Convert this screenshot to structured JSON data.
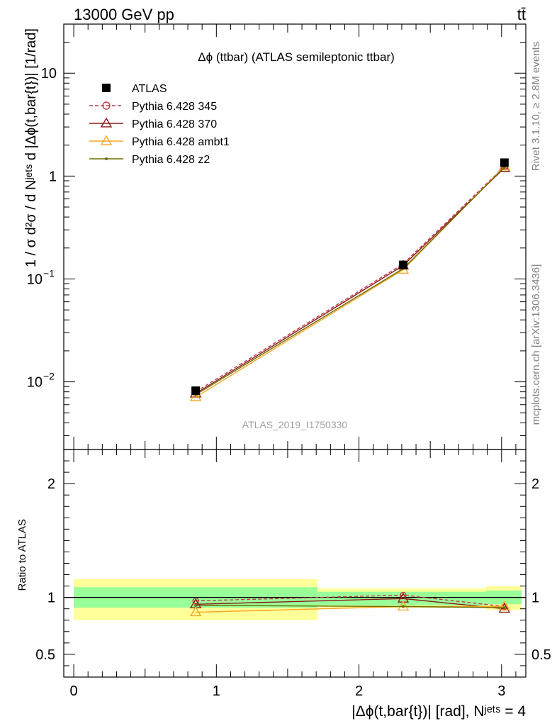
{
  "header": {
    "energy_label": "13000 GeV pp",
    "process_label": "tt̄"
  },
  "side_labels": {
    "rivet": "Rivet 3.1.10, ≥ 2.8M events",
    "mcplots": "mcplots.cern.ch [arXiv:1306.3436]"
  },
  "chart_data": [
    {
      "type": "line",
      "title": "Δϕ (ttbar) (ATLAS semileptonic ttbar)",
      "watermark": "ATLAS_2019_I1750330",
      "ylabel": "1 / σ d²σ / d Nʲᵉᵗˢ d |Δϕ(t,bar{t})| [1/rad]",
      "xlabel": "",
      "y_scale": "log",
      "xlim": [
        -0.07,
        3.17
      ],
      "ylim": [
        0.0022,
        30
      ],
      "y_ticks": [
        {
          "value": 0.01,
          "base": "10",
          "exp": "−2"
        },
        {
          "value": 0.1,
          "base": "10",
          "exp": "−1"
        },
        {
          "value": 1,
          "label": "1"
        },
        {
          "value": 10,
          "label": "10"
        }
      ],
      "legend_position": "top-left",
      "series": [
        {
          "name": "ATLAS",
          "color": "#000000",
          "marker": "filled-square",
          "line": "none",
          "x": [
            0.855,
            2.31,
            3.02
          ],
          "y": [
            0.0082,
            0.137,
            1.35
          ]
        },
        {
          "name": "Pythia 6.428 345",
          "color": "#c0394b",
          "marker": "open-circle",
          "line": "dashed",
          "x": [
            0.855,
            2.31,
            3.02
          ],
          "y": [
            0.008,
            0.14,
            1.24
          ]
        },
        {
          "name": "Pythia 6.428 370",
          "color": "#8b1a1a",
          "marker": "open-triangle",
          "line": "solid",
          "x": [
            0.855,
            2.31,
            3.02
          ],
          "y": [
            0.0077,
            0.135,
            1.2
          ]
        },
        {
          "name": "Pythia 6.428 ambt1",
          "color": "#f5a623",
          "marker": "open-triangle",
          "line": "solid",
          "x": [
            0.855,
            2.31,
            3.02
          ],
          "y": [
            0.0071,
            0.123,
            1.24
          ]
        },
        {
          "name": "Pythia 6.428 z2",
          "color": "#6b6b00",
          "marker": "dot",
          "line": "solid",
          "x": [
            0.855,
            2.31,
            3.02
          ],
          "y": [
            0.0075,
            0.126,
            1.22
          ]
        }
      ]
    },
    {
      "type": "line",
      "ylabel": "Ratio to ATLAS",
      "xlabel": "|Δϕ(t,bar{t})| [rad], Nʲᵉᵗˢ = 4",
      "y_scale": "linear",
      "xlim": [
        -0.07,
        3.17
      ],
      "ylim": [
        0.3,
        2.3
      ],
      "x_ticks": [
        0,
        1,
        2,
        3
      ],
      "y_ticks": [
        0.5,
        1,
        2
      ],
      "reference_line": 1,
      "bands": [
        {
          "x0": 0.0,
          "x1": 1.71,
          "yellow": [
            0.8,
            1.16
          ],
          "green": [
            0.91,
            1.09
          ]
        },
        {
          "x0": 1.71,
          "x1": 2.89,
          "yellow": [
            0.91,
            1.08
          ],
          "green": [
            0.93,
            1.05
          ]
        },
        {
          "x0": 2.89,
          "x1": 3.14,
          "yellow": [
            0.89,
            1.1
          ],
          "green": [
            0.94,
            1.06
          ]
        }
      ],
      "band_colors": {
        "yellow": "#ffff99",
        "green": "#99ff99"
      },
      "series": [
        {
          "name": "Pythia 6.428 345",
          "color": "#c0394b",
          "marker": "open-circle",
          "line": "dashed",
          "x": [
            0.855,
            2.31,
            3.02
          ],
          "y": [
            0.97,
            1.02,
            0.92
          ]
        },
        {
          "name": "Pythia 6.428 370",
          "color": "#8b1a1a",
          "marker": "open-triangle",
          "line": "solid",
          "x": [
            0.855,
            2.31,
            3.02
          ],
          "y": [
            0.94,
            0.99,
            0.9
          ]
        },
        {
          "name": "Pythia 6.428 ambt1",
          "color": "#f5a623",
          "marker": "open-triangle",
          "line": "solid",
          "x": [
            0.855,
            2.31,
            3.02
          ],
          "y": [
            0.87,
            0.92,
            0.92
          ]
        },
        {
          "name": "Pythia 6.428 z2",
          "color": "#6b6b00",
          "marker": "dot",
          "line": "solid",
          "x": [
            0.855,
            2.31,
            3.02
          ],
          "y": [
            0.93,
            0.92,
            0.91
          ]
        }
      ]
    }
  ]
}
